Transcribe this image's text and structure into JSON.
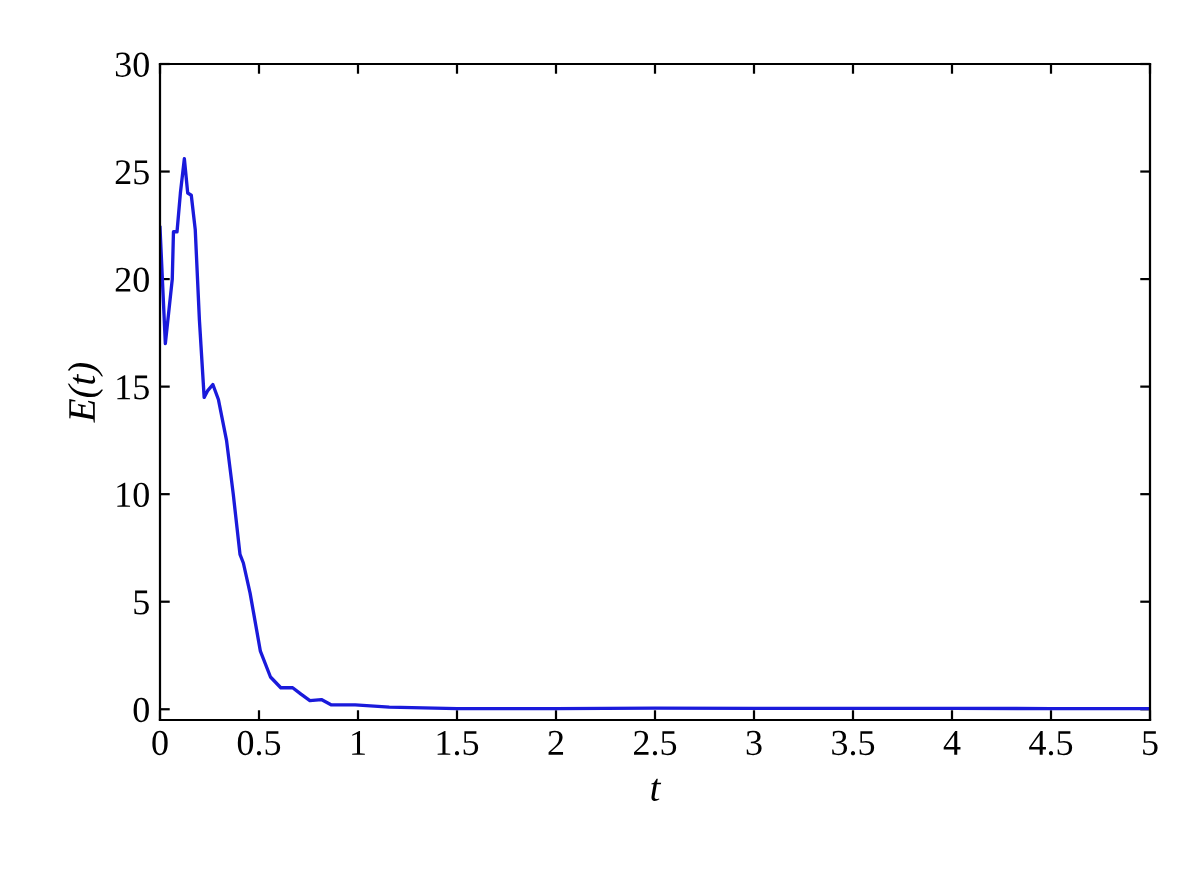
{
  "chart_data": {
    "type": "line",
    "xlabel": "t",
    "ylabel": "E(t)",
    "xlim": [
      0,
      5
    ],
    "ylim": [
      -0.5,
      30
    ],
    "xticks": [
      0,
      0.5,
      1,
      1.5,
      2,
      2.5,
      3,
      3.5,
      4,
      4.5,
      5
    ],
    "yticks": [
      0,
      5,
      10,
      15,
      20,
      25,
      30
    ],
    "grid": false,
    "legend": false,
    "series": [
      {
        "color": "#1a1adb",
        "x": [
          0,
          0.027,
          0.062,
          0.068,
          0.086,
          0.103,
          0.123,
          0.14,
          0.158,
          0.178,
          0.199,
          0.223,
          0.24,
          0.267,
          0.295,
          0.336,
          0.37,
          0.404,
          0.421,
          0.455,
          0.507,
          0.558,
          0.61,
          0.67,
          0.712,
          0.757,
          0.815,
          0.866,
          0.986,
          1.158,
          1.5,
          2,
          2.5,
          3,
          3.5,
          4,
          4.5,
          5
        ],
        "values": [
          22.4,
          17.0,
          20.0,
          22.2,
          22.2,
          24.0,
          25.6,
          24.0,
          23.9,
          22.3,
          18.1,
          14.5,
          14.8,
          15.1,
          14.4,
          12.5,
          10.0,
          7.2,
          6.8,
          5.4,
          2.7,
          1.5,
          1.0,
          1.0,
          0.7,
          0.4,
          0.45,
          0.2,
          0.2,
          0.1,
          0.03,
          0.03,
          0.05,
          0.04,
          0.04,
          0.04,
          0.03,
          0.03
        ]
      }
    ]
  }
}
